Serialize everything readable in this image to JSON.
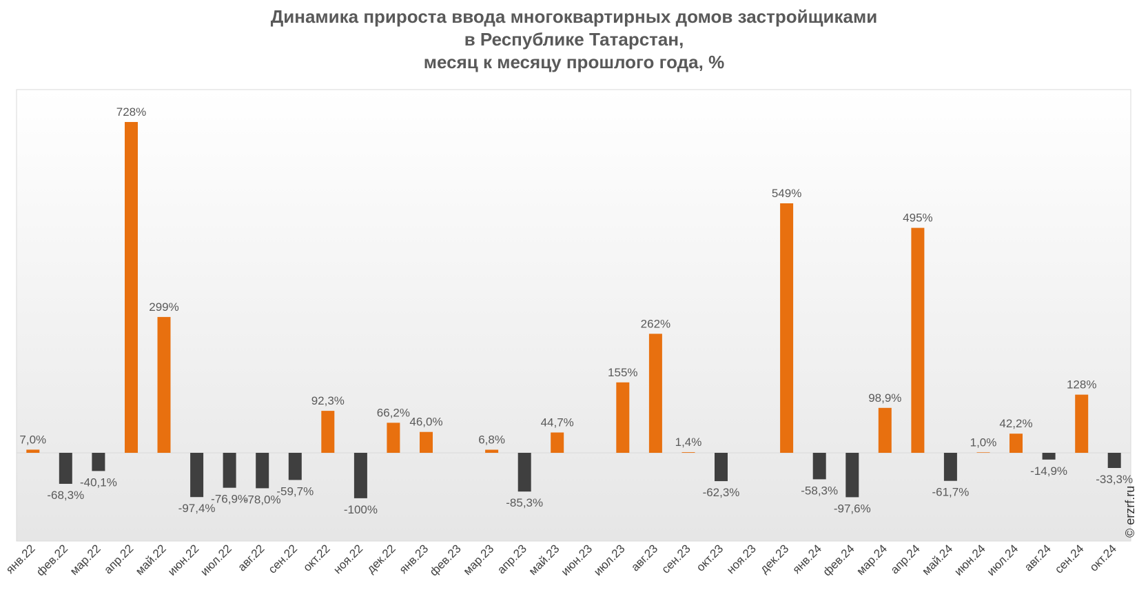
{
  "title_lines": [
    "Динамика прироста ввода многоквартирных домов застройщиками",
    "в Республике Татарстан,",
    "месяц к месяцу прошлого года, %"
  ],
  "watermark": "© erzrf.ru",
  "colors": {
    "positive": "#E8700F",
    "negative": "#3F3F3F",
    "label": "#595959",
    "axis": "#D9D9D9"
  },
  "chart_data": {
    "type": "bar",
    "title": "Динамика прироста ввода многоквартирных домов застройщиками в Республике Татарстан, месяц к месяцу прошлого года, %",
    "categories": [
      "янв.22",
      "фев.22",
      "мар.22",
      "апр.22",
      "май.22",
      "июн.22",
      "июл.22",
      "авг.22",
      "сен.22",
      "окт.22",
      "ноя.22",
      "дек.22",
      "янв.23",
      "фев.23",
      "мар.23",
      "апр.23",
      "май.23",
      "июн.23",
      "июл.23",
      "авг.23",
      "сен.23",
      "окт.23",
      "ноя.23",
      "дек.23",
      "янв.24",
      "фев.24",
      "мар.24",
      "апр.24",
      "май.24",
      "июн.24",
      "июл.24",
      "авг.24",
      "сен.24",
      "окт.24"
    ],
    "values": [
      7.0,
      -68.3,
      -40.1,
      728,
      299,
      -97.4,
      -76.9,
      -78.0,
      -59.7,
      92.3,
      -100,
      66.2,
      46.0,
      null,
      6.8,
      -85.3,
      44.7,
      null,
      155,
      262,
      1.4,
      -62.3,
      null,
      549,
      -58.3,
      -97.6,
      98.9,
      495,
      -61.7,
      1.0,
      42.2,
      -14.9,
      128,
      -33.3
    ],
    "labels": [
      "7,0%",
      "-68,3%",
      "-40,1%",
      "728%",
      "299%",
      "-97,4%",
      "-76,9%",
      "-78,0%",
      "-59,7%",
      "92,3%",
      "-100%",
      "66,2%",
      "46,0%",
      "",
      "6,8%",
      "-85,3%",
      "44,7%",
      "",
      "155%",
      "262%",
      "1,4%",
      "-62,3%",
      "",
      "549%",
      "-58,3%",
      "-97,6%",
      "98,9%",
      "495%",
      "-61,7%",
      "1,0%",
      "42,2%",
      "-14,9%",
      "128%",
      "-33,3%"
    ],
    "ylim": [
      -200,
      780
    ],
    "grid": false,
    "legend": "none"
  }
}
